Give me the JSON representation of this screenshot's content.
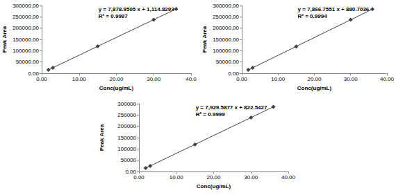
{
  "chart_data": [
    {
      "type": "line",
      "marker": "diamond",
      "color": "#404040",
      "grid": false,
      "x": [
        1.8,
        3,
        15,
        30,
        36
      ],
      "values": [
        15300,
        24750,
        119300,
        237480,
        284760
      ],
      "xlim": [
        0,
        40
      ],
      "xticks": [
        {
          "value": 0,
          "label": "0.00"
        },
        {
          "value": 10,
          "label": "10.00"
        },
        {
          "value": 20,
          "label": "20.00"
        },
        {
          "value": 30,
          "label": "30.00"
        },
        {
          "value": 40,
          "label": "40.0"
        }
      ],
      "ylim": [
        0,
        300000
      ],
      "yticks": [
        {
          "value": 0,
          "label": "0.00"
        },
        {
          "value": 50000,
          "label": "50000.00"
        },
        {
          "value": 100000,
          "label": "100000.00"
        },
        {
          "value": 150000,
          "label": "150000.00"
        },
        {
          "value": 200000,
          "label": "200000.00"
        },
        {
          "value": 250000,
          "label": "250000.00"
        },
        {
          "value": 300000,
          "label": "300000.00"
        }
      ],
      "x_label": "Conc(ug/mL)",
      "y_label": "Peak Area",
      "annotations": [
        "y = 7,878.9505 x + 1,114.8293",
        "R² = 0.9997"
      ]
    },
    {
      "type": "line",
      "marker": "diamond",
      "color": "#404040",
      "grid": false,
      "x": [
        1.8,
        3,
        15,
        30,
        36
      ],
      "values": [
        15040,
        24480,
        118880,
        236880,
        284080
      ],
      "xlim": [
        0,
        40
      ],
      "xticks": [
        {
          "value": 0,
          "label": "0.00"
        },
        {
          "value": 10,
          "label": "10.00"
        },
        {
          "value": 20,
          "label": "20.00"
        },
        {
          "value": 30,
          "label": "30.00"
        },
        {
          "value": 40,
          "label": "40.00"
        }
      ],
      "ylim": [
        0,
        300000
      ],
      "yticks": [
        {
          "value": 0,
          "label": "0.00"
        },
        {
          "value": 50000,
          "label": "50000.00"
        },
        {
          "value": 100000,
          "label": "100000.00"
        },
        {
          "value": 150000,
          "label": "150000.00"
        },
        {
          "value": 200000,
          "label": "200000.00"
        },
        {
          "value": 250000,
          "label": "250000.00"
        },
        {
          "value": 300000,
          "label": "300000.00"
        }
      ],
      "x_label": "Conc(ug/mL)",
      "y_label": "Peak Area",
      "annotations": [
        "y = 7,866.7551 x + 880.7036",
        "R² = 0.9994"
      ]
    },
    {
      "type": "line",
      "marker": "diamond",
      "color": "#404040",
      "grid": false,
      "x": [
        1.8,
        3,
        15,
        30,
        36
      ],
      "values": [
        15100,
        24610,
        119770,
        238710,
        286290
      ],
      "xlim": [
        0,
        40
      ],
      "xticks": [
        {
          "value": 0,
          "label": "0.00"
        },
        {
          "value": 10,
          "label": "10.00"
        },
        {
          "value": 20,
          "label": "20.00"
        },
        {
          "value": 30,
          "label": "30.00"
        },
        {
          "value": 40,
          "label": "40.00"
        }
      ],
      "ylim": [
        0,
        300000
      ],
      "yticks": [
        {
          "value": 0,
          "label": "0.00"
        },
        50000,
        100000,
        150000,
        200000,
        250000,
        300000
      ],
      "x_label": "Conc(ug/mL)",
      "y_label": "Peak Area",
      "annotations": [
        "y = 7,929.5877 x + 822.5427",
        "R² = 0.9999"
      ]
    }
  ]
}
